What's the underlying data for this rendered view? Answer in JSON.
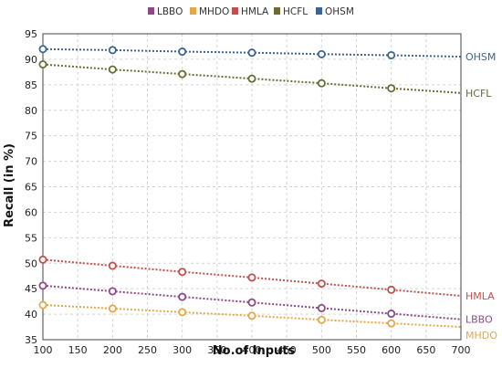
{
  "chart_data": {
    "type": "line",
    "xlabel": "No.of Inputs",
    "ylabel": "Recall (in %)",
    "xlim": [
      100,
      700
    ],
    "ylim": [
      35,
      95
    ],
    "xticks": [
      100,
      150,
      200,
      250,
      300,
      350,
      400,
      450,
      500,
      550,
      600,
      650,
      700
    ],
    "yticks": [
      35,
      40,
      45,
      50,
      55,
      60,
      65,
      70,
      75,
      80,
      85,
      90,
      95
    ],
    "grid": true,
    "legend_position": "top",
    "marker_x": [
      100,
      200,
      300,
      400,
      500,
      600
    ],
    "series": [
      {
        "name": "LBBO",
        "color": "#8b4a86",
        "x": [
          100,
          200,
          300,
          400,
          500,
          600,
          700
        ],
        "values": [
          45.6,
          44.5,
          43.4,
          42.3,
          41.2,
          40.1,
          39.0
        ]
      },
      {
        "name": "MHDO",
        "color": "#e0a94a",
        "x": [
          100,
          200,
          300,
          400,
          500,
          600,
          700
        ],
        "values": [
          41.8,
          41.1,
          40.4,
          39.7,
          38.9,
          38.2,
          37.5
        ]
      },
      {
        "name": "HMLA",
        "color": "#c0504d",
        "x": [
          100,
          200,
          300,
          400,
          500,
          600,
          700
        ],
        "values": [
          50.7,
          49.5,
          48.3,
          47.2,
          46.0,
          44.8,
          43.6
        ]
      },
      {
        "name": "HCFL",
        "color": "#6b6b36",
        "x": [
          100,
          200,
          300,
          400,
          500,
          600,
          700
        ],
        "values": [
          89.0,
          88.0,
          87.1,
          86.2,
          85.3,
          84.3,
          83.4
        ]
      },
      {
        "name": "OHSM",
        "color": "#3d6391",
        "x": [
          100,
          200,
          300,
          400,
          500,
          600,
          700
        ],
        "values": [
          92.0,
          91.8,
          91.5,
          91.3,
          91.0,
          90.8,
          90.5
        ]
      }
    ]
  }
}
